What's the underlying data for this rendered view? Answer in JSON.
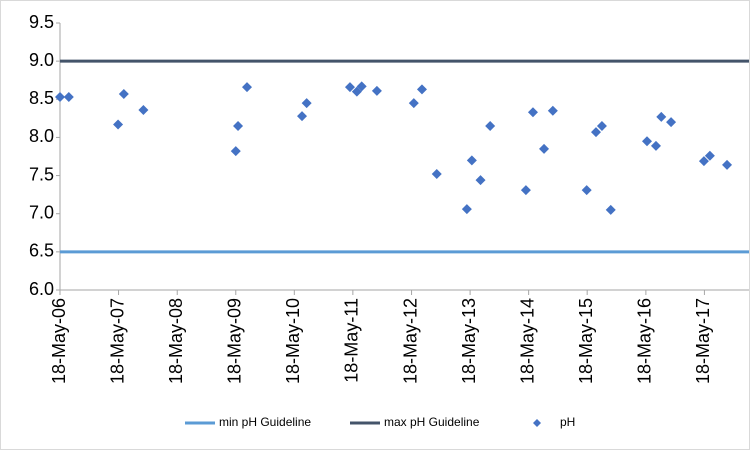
{
  "chart_data": {
    "type": "scatter",
    "xlim": [
      "2006-05-18",
      "2018-02-20"
    ],
    "xticks": [
      {
        "value": "2006-05-18",
        "label": "18-May-06"
      },
      {
        "value": "2007-05-18",
        "label": "18-May-07"
      },
      {
        "value": "2008-05-18",
        "label": "18-May-08"
      },
      {
        "value": "2009-05-18",
        "label": "18-May-09"
      },
      {
        "value": "2010-05-18",
        "label": "18-May-10"
      },
      {
        "value": "2011-05-18",
        "label": "18-May-11"
      },
      {
        "value": "2012-05-18",
        "label": "18-May-12"
      },
      {
        "value": "2013-05-18",
        "label": "18-May-13"
      },
      {
        "value": "2014-05-18",
        "label": "18-May-14"
      },
      {
        "value": "2015-05-18",
        "label": "18-May-15"
      },
      {
        "value": "2016-05-18",
        "label": "18-May-16"
      },
      {
        "value": "2017-05-18",
        "label": "18-May-17"
      }
    ],
    "ylim": [
      6.0,
      9.5
    ],
    "yticks": [
      {
        "value": 6.0,
        "label": "6.0"
      },
      {
        "value": 6.5,
        "label": "6.5"
      },
      {
        "value": 7.0,
        "label": "7.0"
      },
      {
        "value": 7.5,
        "label": "7.5"
      },
      {
        "value": 8.0,
        "label": "8.0"
      },
      {
        "value": 8.5,
        "label": "8.5"
      },
      {
        "value": 9.0,
        "label": "9.0"
      },
      {
        "value": 9.5,
        "label": "9.5"
      }
    ],
    "grid": false,
    "hlines": [
      {
        "name": "min pH Guideline",
        "color": "#5b9bd5",
        "value": 6.5
      },
      {
        "name": "max pH Guideline",
        "color": "#44546a",
        "value": 9.0
      }
    ],
    "series": [
      {
        "name": "pH",
        "color": "#4472c4",
        "x": [
          "2006-05-18",
          "2006-07-12",
          "2007-05-15",
          "2007-06-20",
          "2007-10-20",
          "2009-05-18",
          "2009-06-01",
          "2009-07-27",
          "2010-07-05",
          "2010-08-03",
          "2011-04-30",
          "2011-06-12",
          "2011-07-12",
          "2011-10-15",
          "2012-06-01",
          "2012-07-22",
          "2012-10-22",
          "2013-04-28",
          "2013-05-29",
          "2013-07-22",
          "2013-09-20",
          "2014-05-01",
          "2014-06-14",
          "2014-08-22",
          "2014-10-16",
          "2015-05-15",
          "2015-07-12",
          "2015-08-18",
          "2015-10-12",
          "2016-05-25",
          "2016-07-20",
          "2016-08-22",
          "2016-10-22",
          "2017-05-15",
          "2017-06-21",
          "2017-10-06"
        ],
        "values": [
          8.53,
          8.53,
          8.17,
          8.57,
          8.36,
          7.82,
          8.15,
          8.66,
          8.28,
          8.45,
          8.66,
          8.6,
          8.67,
          8.61,
          8.45,
          8.63,
          7.52,
          7.06,
          7.7,
          7.44,
          8.15,
          7.31,
          8.33,
          7.85,
          8.35,
          7.31,
          8.07,
          8.15,
          7.05,
          7.95,
          7.89,
          8.27,
          8.2,
          7.69,
          7.76,
          7.64
        ]
      }
    ],
    "legend": "bottom"
  }
}
